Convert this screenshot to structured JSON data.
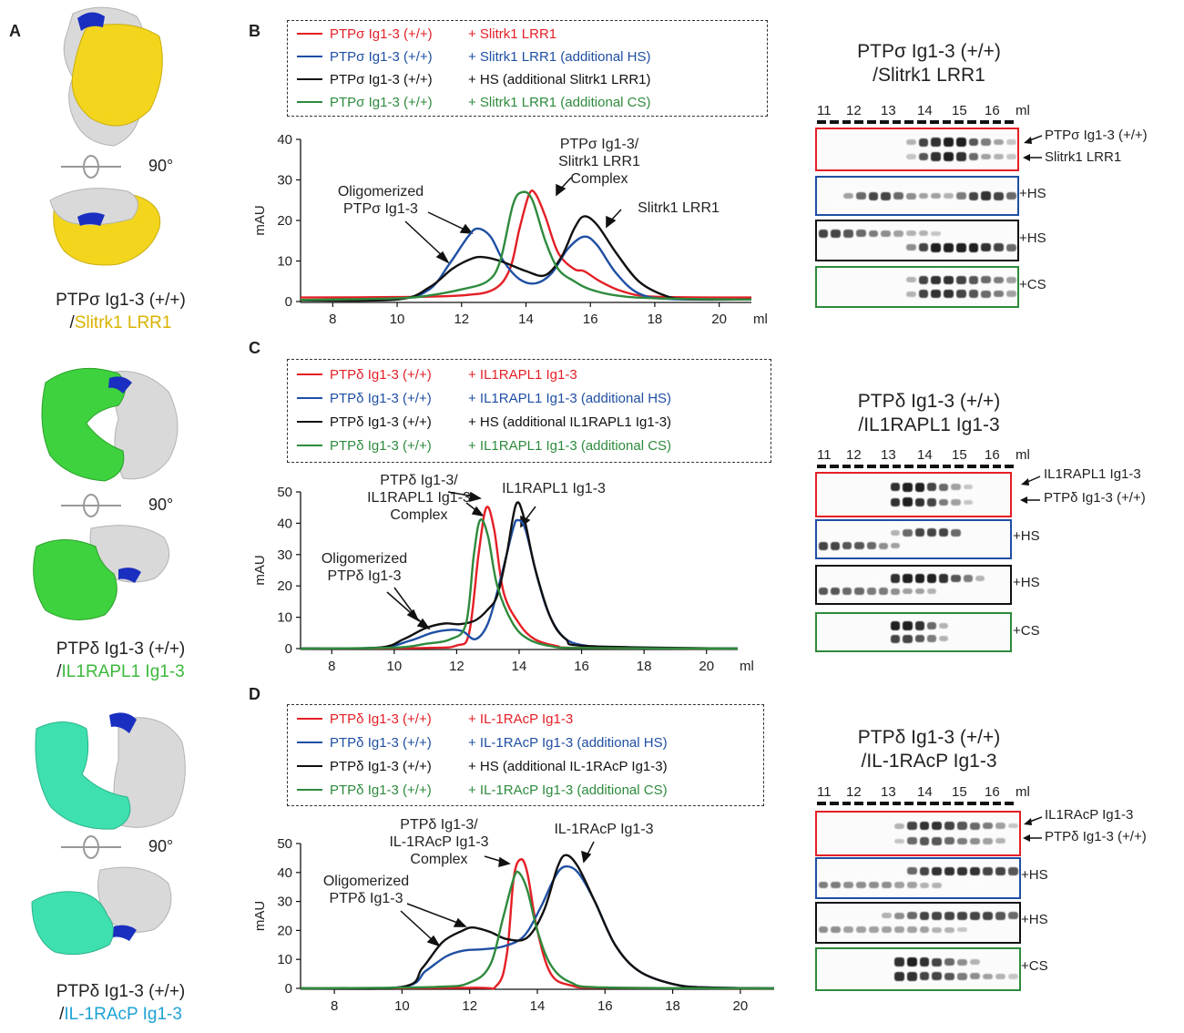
{
  "panels": {
    "A": "A",
    "B": "B",
    "C": "C",
    "D": "D"
  },
  "colors": {
    "red": "#e41f26",
    "blue": "#1f4fa3",
    "black": "#111111",
    "green": "#2e8b3d",
    "yellow": "#f2d51c",
    "greenStruct": "#3fd23f",
    "teal": "#3fe0b0",
    "domainBlue": "#1a2fbf"
  },
  "panelA": {
    "rotation": "90°",
    "structures": [
      {
        "line1": "PTPσ Ig1-3 (+/+)",
        "line2": "/",
        "partner": "Slitrk1 LRR1",
        "partner_color": "#d9b300"
      },
      {
        "line1": "PTPδ Ig1-3 (+/+)",
        "line2": "/",
        "partner": "IL1RAPL1 Ig1-3",
        "partner_color": "#3cb83c"
      },
      {
        "line1": "PTPδ Ig1-3 (+/+)",
        "line2": "/",
        "partner": "IL-1RAcP Ig1-3",
        "partner_color": "#1ea2d6"
      }
    ]
  },
  "panelB": {
    "legend": [
      {
        "a": "PTPσ Ig1-3 (+/+)",
        "b": "+ Slitrk1 LRR1",
        "color": "red"
      },
      {
        "a": "PTPσ Ig1-3 (+/+)",
        "b": "+ Slitrk1 LRR1 (additional HS)",
        "color": "blue"
      },
      {
        "a": "PTPσ Ig1-3 (+/+)",
        "b": "+ HS (additional Slitrk1 LRR1)",
        "color": "black"
      },
      {
        "a": "PTPσ Ig1-3 (+/+)",
        "b": "+ Slitrk1 LRR1 (additional CS)",
        "color": "green"
      }
    ],
    "annotations": {
      "oligo1": "Oligomerized",
      "oligo2": "PTPσ Ig1-3",
      "complex1": "PTPσ Ig1-3/",
      "complex2": "Slitrk1 LRR1",
      "complex3": "Complex",
      "partner": "Slitrk1 LRR1"
    },
    "gel": {
      "title1": "PTPσ Ig1-3 (+/+)",
      "title2": "/Slitrk1 LRR1",
      "fractions": [
        "11",
        "12",
        "13",
        "14",
        "15",
        "16",
        "ml"
      ],
      "band_labels": [
        "PTPσ Ig1-3 (+/+)",
        "Slitrk1 LRR1"
      ],
      "strip_labels": [
        "+HS",
        "+HS",
        "+CS"
      ]
    }
  },
  "panelC": {
    "legend": [
      {
        "a": "PTPδ Ig1-3 (+/+)",
        "b": "+ IL1RAPL1 Ig1-3",
        "color": "red"
      },
      {
        "a": "PTPδ Ig1-3 (+/+)",
        "b": "+ IL1RAPL1 Ig1-3 (additional HS)",
        "color": "blue"
      },
      {
        "a": "PTPδ Ig1-3 (+/+)",
        "b": "+ HS (additional IL1RAPL1 Ig1-3)",
        "color": "black"
      },
      {
        "a": "PTPδ Ig1-3 (+/+)",
        "b": "+ IL1RAPL1 Ig1-3 (additional CS)",
        "color": "green"
      }
    ],
    "annotations": {
      "oligo1": "Oligomerized",
      "oligo2": "PTPδ Ig1-3",
      "complex1": "PTPδ Ig1-3/",
      "complex2": "IL1RAPL1 Ig1-3",
      "complex3": "Complex",
      "partner": "IL1RAPL1 Ig1-3"
    },
    "gel": {
      "title1": "PTPδ Ig1-3 (+/+)",
      "title2": "/IL1RAPL1 Ig1-3",
      "fractions": [
        "11",
        "12",
        "13",
        "14",
        "15",
        "16",
        "ml"
      ],
      "band_labels": [
        "IL1RAPL1 Ig1-3",
        "PTPδ Ig1-3 (+/+)"
      ],
      "strip_labels": [
        "+HS",
        "+HS",
        "+CS"
      ]
    }
  },
  "panelD": {
    "legend": [
      {
        "a": "PTPδ Ig1-3 (+/+)",
        "b": "+ IL-1RAcP Ig1-3",
        "color": "red"
      },
      {
        "a": "PTPδ Ig1-3 (+/+)",
        "b": "+ IL-1RAcP Ig1-3 (additional HS)",
        "color": "blue"
      },
      {
        "a": "PTPδ Ig1-3 (+/+)",
        "b": "+ HS (additional IL-1RAcP Ig1-3)",
        "color": "black"
      },
      {
        "a": "PTPδ Ig1-3 (+/+)",
        "b": "+ IL-1RAcP Ig1-3 (additional CS)",
        "color": "green"
      }
    ],
    "annotations": {
      "oligo1": "Oligomerized",
      "oligo2": "PTPδ Ig1-3",
      "complex1": "PTPδ Ig1-3/",
      "complex2": "IL-1RAcP Ig1-3",
      "complex3": "Complex",
      "partner": "IL-1RAcP Ig1-3"
    },
    "gel": {
      "title1": "PTPδ Ig1-3 (+/+)",
      "title2": "/IL-1RAcP Ig1-3",
      "fractions": [
        "11",
        "12",
        "13",
        "14",
        "15",
        "16",
        "ml"
      ],
      "band_labels": [
        "IL1RAcP Ig1-3",
        "PTPδ Ig1-3 (+/+)"
      ],
      "strip_labels": [
        "+HS",
        "+HS",
        "+CS"
      ]
    }
  },
  "chart_data": [
    {
      "type": "line",
      "panel": "B",
      "xlabel": "ml",
      "ylabel": "mAU",
      "xlim": [
        7,
        21
      ],
      "ylim": [
        0,
        40
      ],
      "xticks": [
        8,
        10,
        12,
        14,
        16,
        18,
        20
      ],
      "yticks": [
        0,
        10,
        20,
        30,
        40
      ],
      "series": [
        {
          "name": "red",
          "color": "red",
          "points": [
            [
              7,
              1
            ],
            [
              10,
              1.1
            ],
            [
              12,
              1.5
            ],
            [
              13,
              3
            ],
            [
              13.5,
              8
            ],
            [
              13.8,
              18
            ],
            [
              14.1,
              26.5
            ],
            [
              14.3,
              26.5
            ],
            [
              14.6,
              21
            ],
            [
              15,
              12
            ],
            [
              15.5,
              8
            ],
            [
              15.8,
              7.5
            ],
            [
              16.3,
              5
            ],
            [
              17,
              2.5
            ],
            [
              18,
              1.2
            ],
            [
              21,
              1
            ]
          ]
        },
        {
          "name": "blue",
          "color": "blue",
          "points": [
            [
              7,
              0.4
            ],
            [
              10,
              0.6
            ],
            [
              11,
              3
            ],
            [
              11.6,
              9
            ],
            [
              12.2,
              16
            ],
            [
              12.5,
              18
            ],
            [
              12.9,
              16
            ],
            [
              13.3,
              10
            ],
            [
              13.8,
              5.5
            ],
            [
              14.3,
              4.5
            ],
            [
              14.8,
              7
            ],
            [
              15.3,
              13
            ],
            [
              15.8,
              16
            ],
            [
              16.2,
              14
            ],
            [
              16.8,
              7
            ],
            [
              17.5,
              2
            ],
            [
              18.5,
              0.6
            ],
            [
              21,
              0.5
            ]
          ]
        },
        {
          "name": "black",
          "color": "black",
          "points": [
            [
              7,
              0.3
            ],
            [
              10,
              0.5
            ],
            [
              11,
              3.5
            ],
            [
              11.7,
              8
            ],
            [
              12.2,
              10.2
            ],
            [
              12.6,
              11
            ],
            [
              13.2,
              10
            ],
            [
              14,
              7.5
            ],
            [
              14.6,
              6.5
            ],
            [
              15.1,
              11
            ],
            [
              15.5,
              18
            ],
            [
              15.8,
              21
            ],
            [
              16.2,
              19
            ],
            [
              16.8,
              12
            ],
            [
              17.5,
              5
            ],
            [
              18.3,
              1.5
            ],
            [
              19,
              0.6
            ],
            [
              21,
              0.5
            ]
          ]
        },
        {
          "name": "green",
          "color": "green",
          "points": [
            [
              7,
              0.4
            ],
            [
              10,
              0.8
            ],
            [
              11,
              1.5
            ],
            [
              12,
              3
            ],
            [
              12.8,
              5
            ],
            [
              13.2,
              10
            ],
            [
              13.6,
              24
            ],
            [
              13.9,
              27
            ],
            [
              14.2,
              25
            ],
            [
              14.6,
              15
            ],
            [
              15,
              8
            ],
            [
              15.5,
              5
            ],
            [
              16,
              3
            ],
            [
              16.8,
              1.5
            ],
            [
              18,
              0.8
            ],
            [
              21,
              0.5
            ]
          ]
        }
      ]
    },
    {
      "type": "line",
      "panel": "C",
      "xlabel": "ml",
      "ylabel": "mAU",
      "xlim": [
        7,
        21
      ],
      "ylim": [
        0,
        50
      ],
      "xticks": [
        8,
        10,
        12,
        14,
        16,
        18,
        20
      ],
      "yticks": [
        0,
        10,
        20,
        30,
        40,
        50
      ],
      "series": [
        {
          "name": "red",
          "color": "red",
          "points": [
            [
              7,
              0
            ],
            [
              11,
              0.2
            ],
            [
              12,
              1
            ],
            [
              12.4,
              5
            ],
            [
              12.7,
              30
            ],
            [
              12.95,
              45
            ],
            [
              13.2,
              38
            ],
            [
              13.5,
              18
            ],
            [
              14,
              8
            ],
            [
              14.5,
              3
            ],
            [
              15.2,
              0.8
            ],
            [
              16,
              0.2
            ],
            [
              21,
              0
            ]
          ]
        },
        {
          "name": "blue",
          "color": "blue",
          "points": [
            [
              7,
              0
            ],
            [
              9.5,
              0.3
            ],
            [
              10.5,
              2.5
            ],
            [
              11.2,
              5
            ],
            [
              11.8,
              6
            ],
            [
              12.2,
              5.5
            ],
            [
              12.6,
              3
            ],
            [
              13,
              8
            ],
            [
              13.4,
              22
            ],
            [
              13.8,
              38
            ],
            [
              13.95,
              41
            ],
            [
              14.2,
              38
            ],
            [
              14.6,
              22
            ],
            [
              15,
              10
            ],
            [
              15.5,
              3
            ],
            [
              16.2,
              0.8
            ],
            [
              17,
              0.2
            ],
            [
              21,
              0
            ]
          ]
        },
        {
          "name": "black",
          "color": "black",
          "points": [
            [
              7,
              0
            ],
            [
              9.5,
              0.3
            ],
            [
              10.3,
              3
            ],
            [
              11,
              6.5
            ],
            [
              11.6,
              8
            ],
            [
              12.1,
              7.8
            ],
            [
              12.6,
              9
            ],
            [
              13,
              12.5
            ],
            [
              13.3,
              17
            ],
            [
              13.6,
              30
            ],
            [
              13.9,
              46
            ],
            [
              14.15,
              42
            ],
            [
              14.5,
              26
            ],
            [
              15,
              10
            ],
            [
              15.5,
              3
            ],
            [
              16.2,
              0.8
            ],
            [
              21,
              0
            ]
          ]
        },
        {
          "name": "green",
          "color": "green",
          "points": [
            [
              7,
              0
            ],
            [
              10,
              0.3
            ],
            [
              11,
              1.5
            ],
            [
              11.8,
              3
            ],
            [
              12.3,
              8
            ],
            [
              12.55,
              30
            ],
            [
              12.75,
              41
            ],
            [
              13,
              36
            ],
            [
              13.3,
              20
            ],
            [
              13.8,
              8
            ],
            [
              14.3,
              3
            ],
            [
              15,
              0.8
            ],
            [
              16,
              0.2
            ],
            [
              21,
              0
            ]
          ]
        }
      ]
    },
    {
      "type": "line",
      "panel": "D",
      "xlabel": "ml",
      "ylabel": "mAU",
      "xlim": [
        7,
        21
      ],
      "ylim": [
        0,
        50
      ],
      "xticks": [
        8,
        10,
        12,
        14,
        16,
        18,
        20
      ],
      "yticks": [
        0,
        10,
        20,
        30,
        40,
        50
      ],
      "series": [
        {
          "name": "red",
          "color": "red",
          "points": [
            [
              7,
              0
            ],
            [
              12,
              0.2
            ],
            [
              12.8,
              1
            ],
            [
              13.1,
              12
            ],
            [
              13.3,
              38
            ],
            [
              13.5,
              44.5
            ],
            [
              13.7,
              40
            ],
            [
              14,
              20
            ],
            [
              14.4,
              5
            ],
            [
              15,
              1
            ],
            [
              16,
              0.2
            ],
            [
              21,
              0
            ]
          ]
        },
        {
          "name": "blue",
          "color": "blue",
          "points": [
            [
              7,
              0
            ],
            [
              10,
              0.5
            ],
            [
              10.7,
              6
            ],
            [
              11.3,
              11
            ],
            [
              11.8,
              13
            ],
            [
              12.4,
              13.5
            ],
            [
              13,
              14.5
            ],
            [
              13.6,
              18
            ],
            [
              14.1,
              28
            ],
            [
              14.5,
              38
            ],
            [
              14.8,
              42
            ],
            [
              15.2,
              40
            ],
            [
              15.7,
              30
            ],
            [
              16.3,
              15
            ],
            [
              17,
              6
            ],
            [
              18,
              1.5
            ],
            [
              19,
              0.3
            ],
            [
              21,
              0
            ]
          ]
        },
        {
          "name": "black",
          "color": "black",
          "points": [
            [
              7,
              0
            ],
            [
              10,
              0.5
            ],
            [
              10.6,
              7
            ],
            [
              11.2,
              16
            ],
            [
              11.8,
              20
            ],
            [
              12.1,
              21
            ],
            [
              12.6,
              19.5
            ],
            [
              13.1,
              17
            ],
            [
              13.7,
              17.5
            ],
            [
              14.2,
              27
            ],
            [
              14.6,
              42
            ],
            [
              14.85,
              46
            ],
            [
              15.2,
              42
            ],
            [
              15.7,
              30
            ],
            [
              16.3,
              15
            ],
            [
              17,
              6
            ],
            [
              18,
              1.5
            ],
            [
              19,
              0.3
            ],
            [
              21,
              0
            ]
          ]
        },
        {
          "name": "green",
          "color": "green",
          "points": [
            [
              7,
              0
            ],
            [
              11,
              0.5
            ],
            [
              12,
              2
            ],
            [
              12.6,
              8
            ],
            [
              13,
              25
            ],
            [
              13.3,
              38
            ],
            [
              13.45,
              40
            ],
            [
              13.7,
              34
            ],
            [
              14,
              20
            ],
            [
              14.4,
              8
            ],
            [
              15,
              2
            ],
            [
              16,
              0.3
            ],
            [
              21,
              0
            ]
          ]
        }
      ]
    }
  ]
}
